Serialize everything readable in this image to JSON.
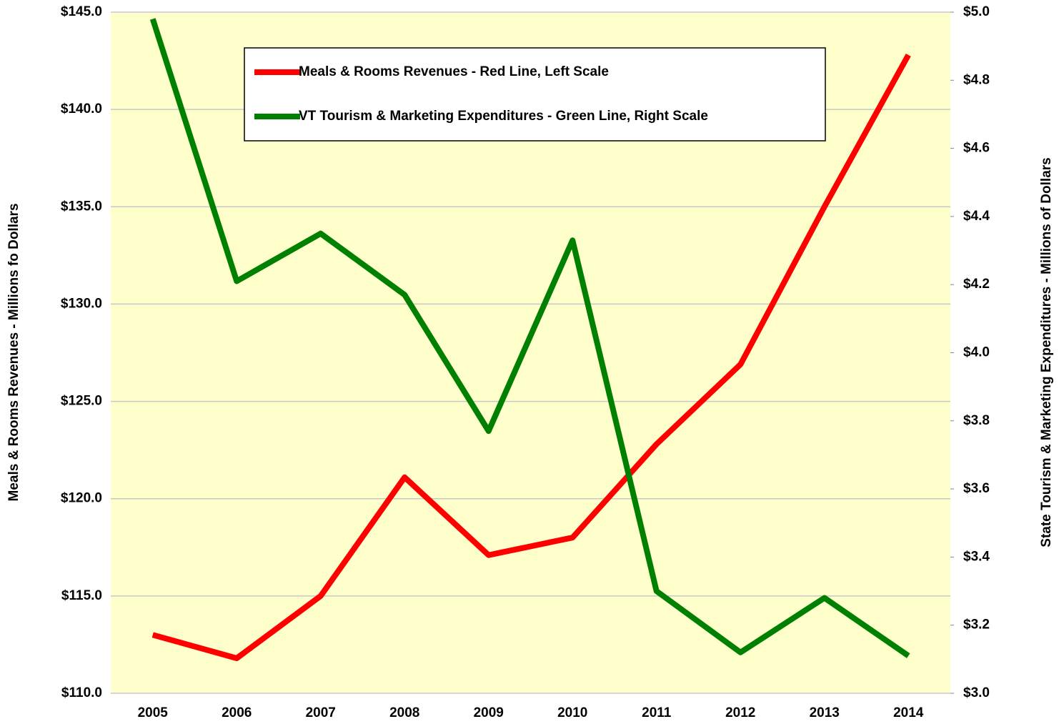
{
  "chart_data": {
    "type": "line",
    "categories": [
      "2005",
      "2006",
      "2007",
      "2008",
      "2009",
      "2010",
      "2011",
      "2012",
      "2013",
      "2014"
    ],
    "series": [
      {
        "name": "Meals & Rooms Revenues - Red Line, Left Scale",
        "color": "#ff0000",
        "axis": "y",
        "values": [
          113.0,
          111.8,
          115.0,
          121.1,
          117.1,
          118.0,
          122.8,
          126.9,
          135.0,
          142.8
        ]
      },
      {
        "name": "VT Tourism & Marketing Expenditures - Green Line, Right Scale",
        "color": "#008000",
        "axis": "y2",
        "values": [
          4.98,
          4.21,
          4.35,
          4.17,
          3.77,
          4.33,
          3.3,
          3.12,
          3.28,
          3.11
        ]
      }
    ],
    "y_label": "Meals & Rooms Revenues - Millions fo Dollars",
    "y2_label": "State Tourism & Marketing Expenditures - Millions of Dollars",
    "ylim": [
      110,
      145
    ],
    "yticks": [
      {
        "value": 110,
        "label": "$110.0"
      },
      {
        "value": 115,
        "label": "$115.0"
      },
      {
        "value": 120,
        "label": "$120.0"
      },
      {
        "value": 125,
        "label": "$125.0"
      },
      {
        "value": 130,
        "label": "$130.0"
      },
      {
        "value": 135,
        "label": "$135.0"
      },
      {
        "value": 140,
        "label": "$140.0"
      },
      {
        "value": 145,
        "label": "$145.0"
      }
    ],
    "y2lim": [
      3.0,
      5.0
    ],
    "y2ticks": [
      {
        "value": 3.0,
        "label": "$3.0"
      },
      {
        "value": 3.2,
        "label": "$3.2"
      },
      {
        "value": 3.4,
        "label": "$3.4"
      },
      {
        "value": 3.6,
        "label": "$3.6"
      },
      {
        "value": 3.8,
        "label": "$3.8"
      },
      {
        "value": 4.0,
        "label": "$4.0"
      },
      {
        "value": 4.2,
        "label": "$4.2"
      },
      {
        "value": 4.4,
        "label": "$4.4"
      },
      {
        "value": 4.6,
        "label": "$4.6"
      },
      {
        "value": 4.8,
        "label": "$4.8"
      },
      {
        "value": 5.0,
        "label": "$5.0"
      }
    ],
    "grid": true,
    "legend": "upper center",
    "background": "#ffffcc"
  }
}
